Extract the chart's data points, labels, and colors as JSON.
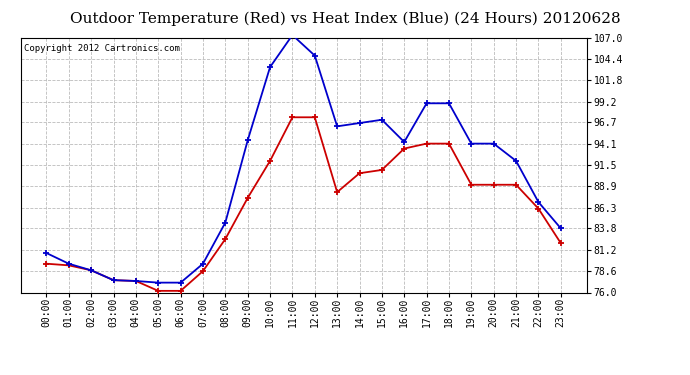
{
  "title": "Outdoor Temperature (Red) vs Heat Index (Blue) (24 Hours) 20120628",
  "copyright_text": "Copyright 2012 Cartronics.com",
  "hours": [
    "00:00",
    "01:00",
    "02:00",
    "03:00",
    "04:00",
    "05:00",
    "06:00",
    "07:00",
    "08:00",
    "09:00",
    "10:00",
    "11:00",
    "12:00",
    "13:00",
    "14:00",
    "15:00",
    "16:00",
    "17:00",
    "18:00",
    "19:00",
    "20:00",
    "21:00",
    "22:00",
    "23:00"
  ],
  "red_data": [
    79.5,
    79.3,
    78.7,
    77.5,
    77.4,
    76.2,
    76.2,
    78.6,
    82.5,
    87.5,
    92.0,
    97.3,
    97.3,
    88.2,
    90.5,
    90.9,
    93.5,
    94.1,
    94.1,
    89.1,
    89.1,
    89.1,
    86.2,
    82.0
  ],
  "blue_data": [
    80.8,
    79.5,
    78.7,
    77.5,
    77.4,
    77.2,
    77.2,
    79.5,
    84.5,
    94.5,
    103.4,
    107.3,
    104.8,
    96.2,
    96.6,
    97.0,
    94.3,
    99.0,
    99.0,
    94.1,
    94.1,
    92.0,
    87.0,
    83.8
  ],
  "ylim_min": 76.0,
  "ylim_max": 107.0,
  "ytick_values": [
    76.0,
    78.6,
    81.2,
    83.8,
    86.3,
    88.9,
    91.5,
    94.1,
    96.7,
    99.2,
    101.8,
    104.4,
    107.0
  ],
  "ytick_labels": [
    "76.0",
    "78.6",
    "81.2",
    "83.8",
    "86.3",
    "88.9",
    "91.5",
    "94.1",
    "96.7",
    "99.2",
    "101.8",
    "104.4",
    "107.0"
  ],
  "red_color": "#cc0000",
  "blue_color": "#0000cc",
  "bg_color": "#ffffff",
  "grid_color": "#bbbbbb",
  "title_fontsize": 11,
  "copyright_fontsize": 6.5,
  "tick_fontsize": 7,
  "marker": "+",
  "markersize": 5,
  "linewidth": 1.3
}
